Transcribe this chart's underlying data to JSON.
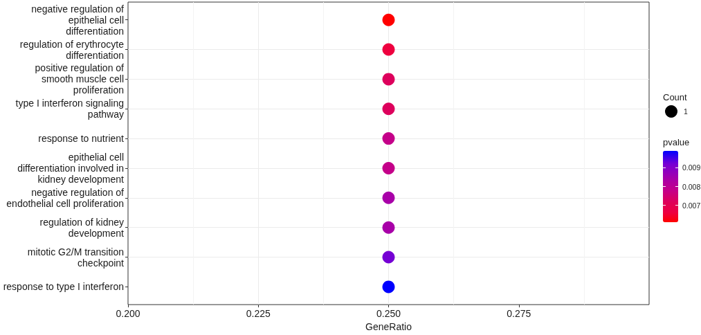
{
  "chart_data": {
    "type": "scatter",
    "orientation": "horizontal",
    "xlabel": "GeneRatio",
    "legend_title": "Count",
    "clabel": "pvalue",
    "categories": [
      "negative regulation of\nepithelial cell\ndifferentiation",
      "regulation of erythrocyte\ndifferentiation",
      "positive regulation of\nsmooth muscle cell\nproliferation",
      "type I interferon signaling\npathway",
      "response to nutrient",
      "epithelial cell\ndifferentiation involved in\nkidney development",
      "negative regulation of\nendothelial cell proliferation",
      "regulation of kidney\ndevelopment",
      "mitotic G2/M transition\ncheckpoint",
      "response to type I interferon"
    ],
    "values": [
      0.25,
      0.25,
      0.25,
      0.25,
      0.25,
      0.25,
      0.25,
      0.25,
      0.25,
      0.25
    ],
    "cvalues": [
      0.0061,
      0.0066,
      0.0072,
      0.0072,
      0.0078,
      0.0078,
      0.0084,
      0.0084,
      0.0092,
      0.0099
    ],
    "colors": [
      "#ff0000",
      "#ee0040",
      "#dd005a",
      "#dd005a",
      "#c4008a",
      "#c4008a",
      "#a800a8",
      "#a800a8",
      "#7800d4",
      "#0000ff"
    ],
    "sizes": [
      1,
      1,
      1,
      1,
      1,
      1,
      1,
      1,
      1,
      1
    ],
    "size_legend": [
      1
    ],
    "xlim": [
      0.2,
      0.3
    ],
    "xticks": [
      {
        "value": 0.2,
        "label": "0.200"
      },
      {
        "value": 0.225,
        "label": "0.225"
      },
      {
        "value": 0.25,
        "label": "0.250"
      },
      {
        "value": 0.275,
        "label": "0.275"
      }
    ],
    "clim": [
      0.0061,
      0.0099
    ],
    "cticks": [
      0.007,
      0.008,
      0.009
    ],
    "grid": true,
    "marker": "circle"
  }
}
